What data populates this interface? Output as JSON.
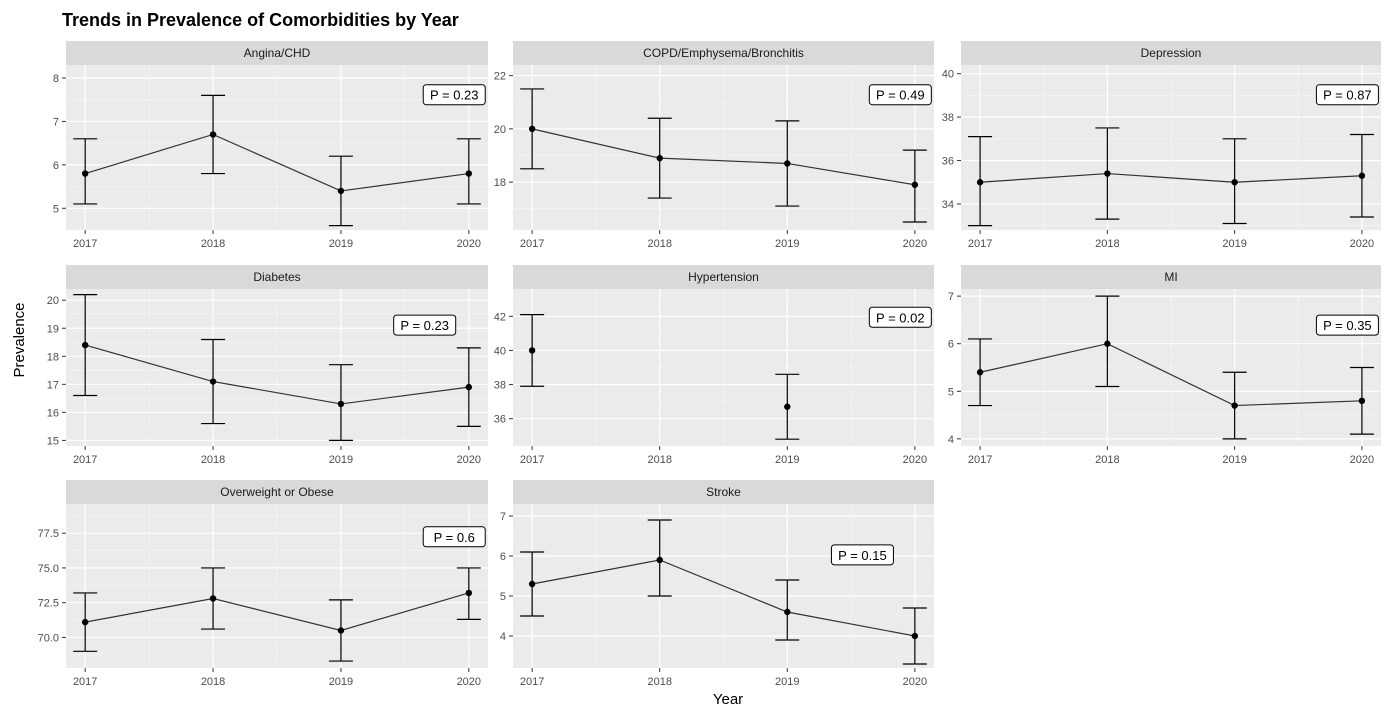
{
  "title": "Trends in Prevalence of Comorbidities by Year",
  "xlabel": "Year",
  "ylabel": "Prevalence",
  "chart_data": [
    {
      "type": "line",
      "panel": "Angina/CHD",
      "p_value": "P = 0.23",
      "x": [
        2017,
        2018,
        2019,
        2020
      ],
      "x_tick_labels": [
        "2017",
        "2018",
        "2019",
        "2020"
      ],
      "y": [
        5.8,
        6.7,
        5.4,
        5.8
      ],
      "lower": [
        5.1,
        5.8,
        4.6,
        5.1
      ],
      "upper": [
        6.6,
        7.6,
        6.2,
        6.6
      ],
      "ylim": [
        4.5,
        8.3
      ],
      "y_ticks": [
        5,
        6,
        7,
        8
      ],
      "y_tick_labels": [
        "5",
        "6",
        "7",
        "8"
      ],
      "connected": true
    },
    {
      "type": "line",
      "panel": "COPD/Emphysema/Bronchitis",
      "p_value": "P = 0.49",
      "x": [
        2017,
        2018,
        2019,
        2020
      ],
      "x_tick_labels": [
        "2017",
        "2018",
        "2019",
        "2020"
      ],
      "y": [
        20.0,
        18.9,
        18.7,
        17.9
      ],
      "lower": [
        18.5,
        17.4,
        17.1,
        16.5
      ],
      "upper": [
        21.5,
        20.4,
        20.3,
        19.2
      ],
      "ylim": [
        16.2,
        22.4
      ],
      "y_ticks": [
        18,
        20,
        22
      ],
      "y_tick_labels": [
        "18",
        "20",
        "22"
      ],
      "connected": true
    },
    {
      "type": "line",
      "panel": "Depression",
      "p_value": "P = 0.87",
      "x": [
        2017,
        2018,
        2019,
        2020
      ],
      "x_tick_labels": [
        "2017",
        "2018",
        "2019",
        "2020"
      ],
      "y": [
        35.0,
        35.4,
        35.0,
        35.3
      ],
      "lower": [
        33.0,
        33.3,
        33.1,
        33.4
      ],
      "upper": [
        37.1,
        37.5,
        37.0,
        37.2
      ],
      "ylim": [
        32.8,
        40.4
      ],
      "y_ticks": [
        34,
        36,
        38,
        40
      ],
      "y_tick_labels": [
        "34",
        "36",
        "38",
        "40"
      ],
      "connected": true
    },
    {
      "type": "line",
      "panel": "Diabetes",
      "p_value": "P = 0.23",
      "x": [
        2017,
        2018,
        2019,
        2020
      ],
      "x_tick_labels": [
        "2017",
        "2018",
        "2019",
        "2020"
      ],
      "y": [
        18.4,
        17.1,
        16.3,
        16.9
      ],
      "lower": [
        16.6,
        15.6,
        15.0,
        15.5
      ],
      "upper": [
        20.2,
        18.6,
        17.7,
        18.3
      ],
      "ylim": [
        14.8,
        20.4
      ],
      "y_ticks": [
        15,
        16,
        17,
        18,
        19,
        20
      ],
      "y_tick_labels": [
        "15",
        "16",
        "17",
        "18",
        "19",
        "20"
      ],
      "connected": true
    },
    {
      "type": "line",
      "panel": "Hypertension",
      "p_value": "P = 0.02",
      "x": [
        2017,
        2018,
        2019,
        2020
      ],
      "x_tick_labels": [
        "2017",
        "2018",
        "2019",
        "2020"
      ],
      "y": [
        40.0,
        null,
        36.7,
        null
      ],
      "lower": [
        37.9,
        null,
        34.8,
        null
      ],
      "upper": [
        42.1,
        null,
        38.6,
        null
      ],
      "ylim": [
        34.4,
        43.6
      ],
      "y_ticks": [
        36,
        38,
        40,
        42
      ],
      "y_tick_labels": [
        "36",
        "38",
        "40",
        "42"
      ],
      "connected": false
    },
    {
      "type": "line",
      "panel": "MI",
      "p_value": "P = 0.35",
      "x": [
        2017,
        2018,
        2019,
        2020
      ],
      "x_tick_labels": [
        "2017",
        "2018",
        "2019",
        "2020"
      ],
      "y": [
        5.4,
        6.0,
        4.7,
        4.8
      ],
      "lower": [
        4.7,
        5.1,
        4.0,
        4.1
      ],
      "upper": [
        6.1,
        7.0,
        5.4,
        5.5
      ],
      "ylim": [
        3.85,
        7.15
      ],
      "y_ticks": [
        4,
        5,
        6,
        7
      ],
      "y_tick_labels": [
        "4",
        "5",
        "6",
        "7"
      ],
      "connected": true
    },
    {
      "type": "line",
      "panel": "Overweight or Obese",
      "p_value": "P = 0.6",
      "x": [
        2017,
        2018,
        2019,
        2020
      ],
      "x_tick_labels": [
        "2017",
        "2018",
        "2019",
        "2020"
      ],
      "y": [
        71.1,
        72.8,
        70.5,
        73.2
      ],
      "lower": [
        69.0,
        70.6,
        68.3,
        71.3
      ],
      "upper": [
        73.2,
        75.0,
        72.7,
        75.0
      ],
      "ylim": [
        67.8,
        79.6
      ],
      "y_ticks": [
        70.0,
        72.5,
        75.0,
        77.5
      ],
      "y_tick_labels": [
        "70.0",
        "72.5",
        "75.0",
        "77.5"
      ],
      "connected": true
    },
    {
      "type": "line",
      "panel": "Stroke",
      "p_value": "P = 0.15",
      "x": [
        2017,
        2018,
        2019,
        2020
      ],
      "x_tick_labels": [
        "2017",
        "2018",
        "2019",
        "2020"
      ],
      "y": [
        5.3,
        5.9,
        4.6,
        4.0
      ],
      "lower": [
        4.5,
        5.0,
        3.9,
        3.3
      ],
      "upper": [
        6.1,
        6.9,
        5.4,
        4.7
      ],
      "ylim": [
        3.2,
        7.3
      ],
      "y_ticks": [
        4,
        5,
        6,
        7
      ],
      "y_tick_labels": [
        "4",
        "5",
        "6",
        "7"
      ],
      "connected": true
    }
  ]
}
